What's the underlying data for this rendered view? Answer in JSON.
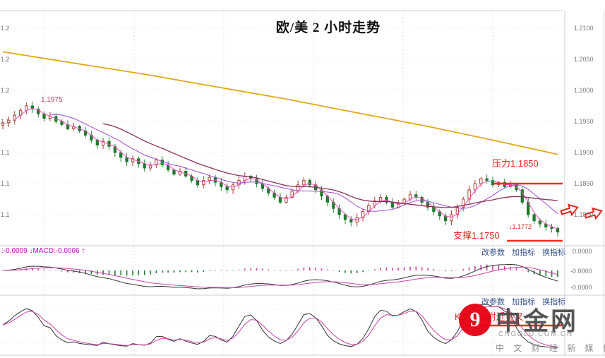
{
  "title": "欧/美 2 小时走势",
  "price_axis": [
    "1.2100",
    "1.2050",
    "1.2000",
    "1.1950",
    "1.1900",
    "1.1850",
    "1.1800"
  ],
  "macd_axis": [
    "0.0000",
    "-0.0000",
    "-0.0000"
  ],
  "annotations": {
    "peak_price": "1.1975",
    "resistance_label": "压力1.1850",
    "support_label": "支撑1.1750",
    "last_price_label": "↓1.1772",
    "kd_note": "KD在50附近金叉"
  },
  "macd_panel": {
    "status": ":-0.0009 ↓MACD:-0.0006 ↑",
    "links": [
      "改参数",
      "加指标",
      "换指标"
    ]
  },
  "kd_panel": {
    "links": [
      "改参数",
      "加指标",
      "换指标"
    ]
  },
  "watermark": {
    "brand": "中金网",
    "domain": "CNGOLD.COM.CN",
    "tagline": "中 文 财 经 新 媒 体",
    "logo_glyph": "9"
  },
  "colors": {
    "up_candle": "#a93226",
    "down_candle": "#1f7a2e",
    "yellow_ma": "#e0a818",
    "fast_ma": "#ff4dc4",
    "mid_ma": "#a04bd6",
    "slow_ma": "#8b2e5c",
    "annotation_red": "#ff2a1a",
    "macd_line": "#333333",
    "signal_line": "#cc3fa8"
  },
  "chart_data": [
    {
      "type": "candlestick",
      "title": "欧/美 2 小时走势",
      "instrument": "欧/美",
      "timeframe": "2小时",
      "y_ticks": [
        1.21,
        1.205,
        1.2,
        1.195,
        1.19,
        1.185,
        1.18
      ],
      "resistance": 1.185,
      "support": 1.175,
      "last_price": 1.1772,
      "peak_price": 1.1975,
      "closes": [
        1.1948,
        1.1952,
        1.196,
        1.1968,
        1.1975,
        1.197,
        1.1962,
        1.1955,
        1.1958,
        1.195,
        1.1945,
        1.1938,
        1.1942,
        1.1935,
        1.1928,
        1.192,
        1.1912,
        1.1918,
        1.191,
        1.19,
        1.1892,
        1.1885,
        1.189,
        1.1882,
        1.1875,
        1.188,
        1.1888,
        1.188,
        1.1872,
        1.1865,
        1.187,
        1.1862,
        1.1855,
        1.1848,
        1.1855,
        1.186,
        1.1852,
        1.1845,
        1.184,
        1.1848,
        1.1855,
        1.1862,
        1.1858,
        1.185,
        1.1842,
        1.1835,
        1.1828,
        1.182,
        1.1828,
        1.1838,
        1.1848,
        1.1855,
        1.1848,
        1.184,
        1.183,
        1.182,
        1.181,
        1.18,
        1.1792,
        1.1788,
        1.1795,
        1.1805,
        1.1815,
        1.1822,
        1.1828,
        1.182,
        1.1812,
        1.1818,
        1.1825,
        1.1832,
        1.1828,
        1.182,
        1.1812,
        1.1805,
        1.1798,
        1.179,
        1.18,
        1.1812,
        1.1825,
        1.184,
        1.185,
        1.1858,
        1.1855,
        1.1848,
        1.1852,
        1.1845,
        1.1848,
        1.184,
        1.182,
        1.18,
        1.179,
        1.1785,
        1.178,
        1.1778,
        1.1772
      ],
      "yellow_ma": [
        [
          0,
          1.2062
        ],
        [
          12,
          1.2044
        ],
        [
          24,
          1.2026
        ],
        [
          36,
          1.2006
        ],
        [
          48,
          1.1986
        ],
        [
          60,
          1.1964
        ],
        [
          72,
          1.1942
        ],
        [
          84,
          1.1918
        ],
        [
          94,
          1.1897
        ]
      ]
    },
    {
      "type": "bar",
      "name": "MACD",
      "dif_value": -0.0009,
      "macd_value": -0.0006,
      "y_ticks": [
        "0.0000",
        "-0.0000",
        "-0.0000"
      ]
    },
    {
      "type": "line",
      "name": "KD",
      "note": "KD在50附近金叉",
      "yrange": [
        0,
        100
      ]
    }
  ]
}
